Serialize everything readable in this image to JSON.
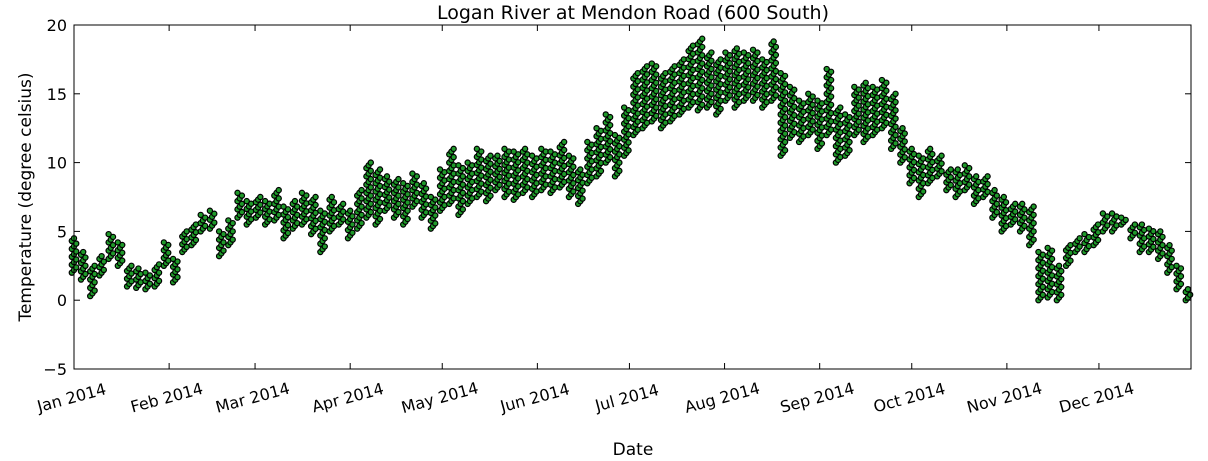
{
  "chart_data": {
    "type": "scatter",
    "title": "Logan River at Mendon Road (600 South)",
    "xlabel": "Date",
    "ylabel": "Temperature (degree celsius)",
    "ylim": [
      -5,
      20
    ],
    "yticks": [
      "20",
      "15",
      "10",
      "5",
      "0",
      "−5"
    ],
    "ytick_values": [
      20,
      15,
      10,
      5,
      0,
      -5
    ],
    "xlim": [
      "2014-01-01",
      "2014-12-31"
    ],
    "xticks": [
      "Jan 2014",
      "Feb 2014",
      "Mar 2014",
      "Apr 2014",
      "May 2014",
      "Jun 2014",
      "Jul 2014",
      "Aug 2014",
      "Sep 2014",
      "Oct 2014",
      "Nov 2014",
      "Dec 2014"
    ],
    "xtick_dates": [
      "2014-01-01",
      "2014-02-01",
      "2014-03-01",
      "2014-04-01",
      "2014-05-01",
      "2014-06-01",
      "2014-07-01",
      "2014-08-01",
      "2014-09-01",
      "2014-10-01",
      "2014-11-01",
      "2014-12-01"
    ],
    "marker_fill": "#1f9a2a",
    "marker_edge": "#000000",
    "grid": false,
    "series": [
      {
        "x": [
          "2014-01-01",
          "2014-01-04",
          "2014-01-07",
          "2014-01-10",
          "2014-01-13",
          "2014-01-16",
          "2014-01-19",
          "2014-01-22",
          "2014-01-25",
          "2014-01-28",
          "2014-01-31",
          "2014-02-03",
          "2014-02-06",
          "2014-02-09",
          "2014-02-12",
          "2014-02-15",
          "2014-02-18",
          "2014-02-21",
          "2014-02-24",
          "2014-02-27",
          "2014-03-02",
          "2014-03-05",
          "2014-03-08",
          "2014-03-11",
          "2014-03-14",
          "2014-03-17",
          "2014-03-20",
          "2014-03-23",
          "2014-03-26",
          "2014-03-29",
          "2014-04-01",
          "2014-04-04",
          "2014-04-07",
          "2014-04-10",
          "2014-04-13",
          "2014-04-16",
          "2014-04-19",
          "2014-04-22",
          "2014-04-25",
          "2014-04-28",
          "2014-05-01",
          "2014-05-04",
          "2014-05-07",
          "2014-05-10",
          "2014-05-13",
          "2014-05-16",
          "2014-05-19",
          "2014-05-22",
          "2014-05-25",
          "2014-05-28",
          "2014-05-31",
          "2014-06-03",
          "2014-06-06",
          "2014-06-09",
          "2014-06-12",
          "2014-06-15",
          "2014-06-18",
          "2014-06-21",
          "2014-06-24",
          "2014-06-27",
          "2014-06-30",
          "2014-07-03",
          "2014-07-06",
          "2014-07-09",
          "2014-07-12",
          "2014-07-15",
          "2014-07-18",
          "2014-07-21",
          "2014-07-24",
          "2014-07-27",
          "2014-07-30",
          "2014-08-02",
          "2014-08-05",
          "2014-08-08",
          "2014-08-11",
          "2014-08-14",
          "2014-08-17",
          "2014-08-20",
          "2014-08-23",
          "2014-08-26",
          "2014-08-29",
          "2014-09-01",
          "2014-09-04",
          "2014-09-07",
          "2014-09-10",
          "2014-09-13",
          "2014-09-16",
          "2014-09-19",
          "2014-09-22",
          "2014-09-25",
          "2014-09-28",
          "2014-10-01",
          "2014-10-04",
          "2014-10-07",
          "2014-10-10",
          "2014-10-13",
          "2014-10-16",
          "2014-10-19",
          "2014-10-22",
          "2014-10-25",
          "2014-10-28",
          "2014-10-31",
          "2014-11-03",
          "2014-11-06",
          "2014-11-09",
          "2014-11-12",
          "2014-11-15",
          "2014-11-18",
          "2014-11-21",
          "2014-11-24",
          "2014-11-27",
          "2014-11-30",
          "2014-12-03",
          "2014-12-06",
          "2014-12-09",
          "2014-12-12",
          "2014-12-15",
          "2014-12-18",
          "2014-12-21",
          "2014-12-24",
          "2014-12-27",
          "2014-12-30"
        ],
        "low": [
          2.0,
          1.5,
          0.3,
          1.8,
          3.0,
          2.5,
          1.0,
          0.9,
          0.8,
          1.0,
          2.5,
          1.3,
          3.5,
          4.0,
          5.0,
          5.2,
          3.2,
          4.0,
          6.0,
          5.5,
          6.0,
          5.5,
          5.8,
          4.5,
          5.2,
          5.5,
          4.8,
          3.5,
          5.0,
          5.5,
          4.5,
          5.2,
          6.0,
          5.5,
          6.5,
          6.0,
          5.5,
          6.8,
          6.0,
          5.2,
          6.5,
          7.0,
          6.2,
          7.0,
          7.5,
          7.2,
          8.0,
          7.5,
          7.3,
          7.8,
          7.5,
          8.0,
          7.8,
          8.2,
          7.5,
          7.0,
          8.5,
          9.0,
          10.0,
          9.0,
          10.5,
          12.0,
          12.5,
          13.0,
          12.5,
          13.0,
          13.5,
          14.0,
          13.8,
          14.0,
          13.5,
          14.5,
          14.0,
          14.5,
          14.5,
          14.0,
          14.5,
          10.5,
          11.8,
          11.5,
          12.0,
          11.0,
          12.0,
          10.0,
          10.5,
          12.0,
          11.5,
          12.0,
          12.5,
          11.0,
          10.0,
          8.5,
          7.5,
          8.5,
          9.0,
          8.0,
          7.5,
          8.0,
          7.0,
          7.5,
          6.0,
          5.0,
          5.5,
          5.0,
          4.0,
          0.0,
          0.2,
          0.0,
          2.5,
          3.5,
          3.5,
          4.0,
          5.0,
          5.0,
          5.5,
          4.5,
          3.5,
          3.5,
          3.0,
          2.0,
          0.8,
          0.0
        ],
        "high": [
          4.5,
          3.5,
          2.5,
          3.2,
          4.8,
          4.2,
          2.5,
          2.3,
          2.0,
          2.6,
          4.2,
          3.0,
          5.0,
          5.5,
          6.2,
          6.5,
          5.0,
          5.8,
          7.8,
          7.2,
          7.5,
          7.2,
          8.0,
          6.8,
          7.2,
          7.8,
          7.5,
          6.5,
          7.5,
          7.0,
          6.5,
          8.0,
          10.0,
          9.5,
          9.0,
          8.8,
          8.5,
          9.2,
          8.5,
          7.5,
          9.5,
          11.0,
          9.8,
          10.0,
          11.0,
          10.5,
          10.5,
          11.0,
          10.8,
          11.0,
          10.5,
          11.0,
          10.8,
          11.5,
          10.5,
          9.5,
          11.5,
          12.5,
          13.5,
          12.0,
          14.0,
          16.5,
          17.0,
          17.2,
          16.5,
          17.0,
          17.5,
          18.5,
          19.0,
          18.0,
          17.5,
          18.0,
          18.3,
          18.0,
          18.2,
          17.5,
          18.8,
          16.5,
          15.5,
          14.5,
          15.0,
          14.5,
          16.8,
          14.0,
          13.5,
          15.5,
          15.8,
          15.5,
          16.0,
          15.0,
          12.5,
          11.0,
          10.5,
          11.0,
          10.5,
          9.5,
          9.5,
          9.8,
          9.0,
          9.0,
          8.0,
          7.5,
          7.0,
          7.0,
          6.8,
          3.5,
          3.8,
          2.5,
          4.0,
          4.5,
          4.8,
          5.5,
          6.3,
          6.3,
          6.0,
          5.5,
          5.5,
          5.2,
          5.0,
          4.0,
          2.5,
          0.8
        ]
      }
    ]
  }
}
